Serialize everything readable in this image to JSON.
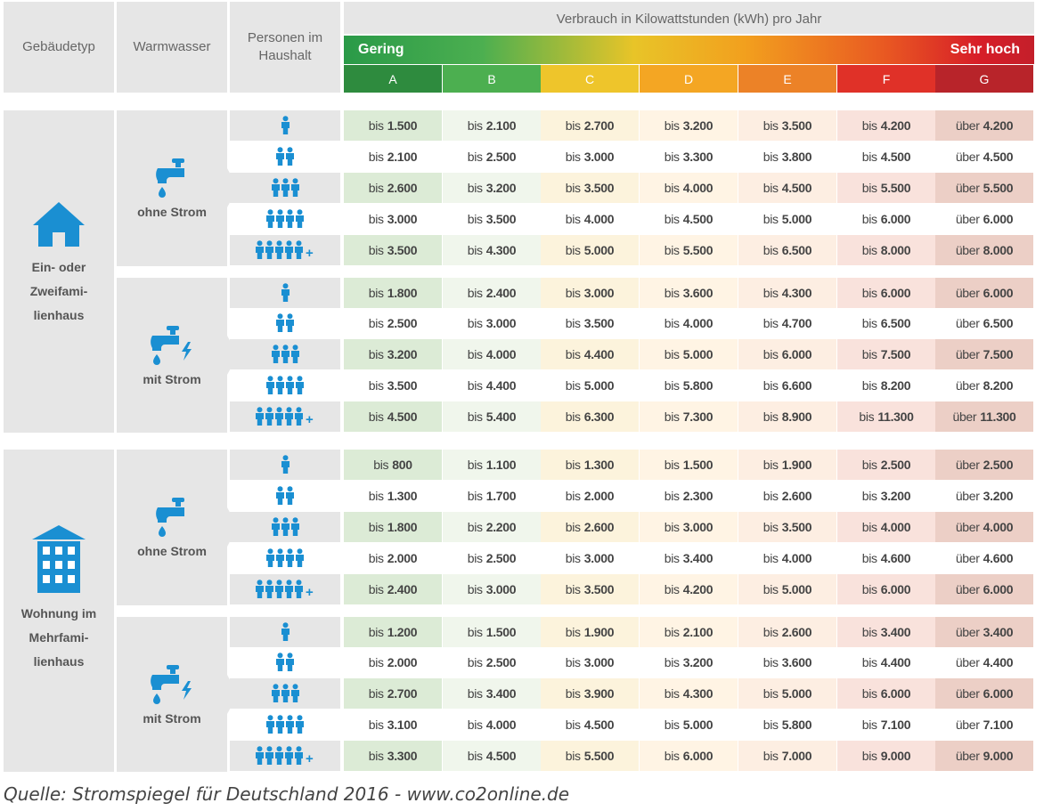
{
  "header": {
    "gebaeudetyp": "Gebäudetyp",
    "warmwasser": "Warmwasser",
    "personen_line1": "Personen im",
    "personen_line2": "Haushalt",
    "verbrauch": "Verbrauch in Kilowattstunden (kWh) pro Jahr",
    "scale_low": "Gering",
    "scale_high": "Sehr hoch"
  },
  "chart_data": {
    "type": "table",
    "title": "Verbrauch in Kilowattstunden (kWh) pro Jahr",
    "classes": [
      "A",
      "B",
      "C",
      "D",
      "E",
      "F",
      "G"
    ],
    "class_colors": [
      "#2e8b3e",
      "#4caf50",
      "#eec52b",
      "#f4a623",
      "#ec8227",
      "#e03128",
      "#b8242a"
    ],
    "class_bg": [
      "#dcebd6",
      "#f0f6ec",
      "#fcf3dc",
      "#fff4e4",
      "#fdeee2",
      "#f9e2dc",
      "#eccfc6"
    ],
    "groups": [
      {
        "building": "Ein- oder Zweifamilienhaus",
        "building_lines": [
          "Ein- oder",
          "Zweifami-",
          "lienhaus"
        ],
        "building_icon": "house-icon",
        "sections": [
          {
            "warmwasser": "ohne Strom",
            "icon": "faucet-icon",
            "rows": [
              {
                "persons": 1,
                "plus": false,
                "values": [
                  "bis 1.500",
                  "bis 2.100",
                  "bis 2.700",
                  "bis 3.200",
                  "bis 3.500",
                  "bis 4.200",
                  "über 4.200"
                ]
              },
              {
                "persons": 2,
                "plus": false,
                "values": [
                  "bis 2.100",
                  "bis 2.500",
                  "bis 3.000",
                  "bis 3.300",
                  "bis 3.800",
                  "bis 4.500",
                  "über 4.500"
                ]
              },
              {
                "persons": 3,
                "plus": false,
                "values": [
                  "bis 2.600",
                  "bis 3.200",
                  "bis 3.500",
                  "bis 4.000",
                  "bis 4.500",
                  "bis 5.500",
                  "über 5.500"
                ]
              },
              {
                "persons": 4,
                "plus": false,
                "values": [
                  "bis 3.000",
                  "bis 3.500",
                  "bis 4.000",
                  "bis 4.500",
                  "bis 5.000",
                  "bis 6.000",
                  "über 6.000"
                ]
              },
              {
                "persons": 5,
                "plus": true,
                "values": [
                  "bis 3.500",
                  "bis 4.300",
                  "bis 5.000",
                  "bis 5.500",
                  "bis 6.500",
                  "bis 8.000",
                  "über 8.000"
                ]
              }
            ]
          },
          {
            "warmwasser": "mit Strom",
            "icon": "faucet-lightning-icon",
            "rows": [
              {
                "persons": 1,
                "plus": false,
                "values": [
                  "bis 1.800",
                  "bis 2.400",
                  "bis 3.000",
                  "bis 3.600",
                  "bis 4.300",
                  "bis 6.000",
                  "über 6.000"
                ]
              },
              {
                "persons": 2,
                "plus": false,
                "values": [
                  "bis 2.500",
                  "bis 3.000",
                  "bis 3.500",
                  "bis 4.000",
                  "bis 4.700",
                  "bis 6.500",
                  "über 6.500"
                ]
              },
              {
                "persons": 3,
                "plus": false,
                "values": [
                  "bis 3.200",
                  "bis 4.000",
                  "bis 4.400",
                  "bis 5.000",
                  "bis 6.000",
                  "bis 7.500",
                  "über 7.500"
                ]
              },
              {
                "persons": 4,
                "plus": false,
                "values": [
                  "bis 3.500",
                  "bis 4.400",
                  "bis 5.000",
                  "bis 5.800",
                  "bis 6.600",
                  "bis 8.200",
                  "über 8.200"
                ]
              },
              {
                "persons": 5,
                "plus": true,
                "values": [
                  "bis 4.500",
                  "bis 5.400",
                  "bis 6.300",
                  "bis 7.300",
                  "bis 8.900",
                  "bis 11.300",
                  "über 11.300"
                ]
              }
            ]
          }
        ]
      },
      {
        "building": "Wohnung im Mehrfamilienhaus",
        "building_lines": [
          "Wohnung im",
          "Mehrfami-",
          "lienhaus"
        ],
        "building_icon": "apartment-building-icon",
        "sections": [
          {
            "warmwasser": "ohne Strom",
            "icon": "faucet-icon",
            "rows": [
              {
                "persons": 1,
                "plus": false,
                "values": [
                  "bis 800",
                  "bis 1.100",
                  "bis 1.300",
                  "bis 1.500",
                  "bis 1.900",
                  "bis 2.500",
                  "über 2.500"
                ]
              },
              {
                "persons": 2,
                "plus": false,
                "values": [
                  "bis 1.300",
                  "bis 1.700",
                  "bis 2.000",
                  "bis 2.300",
                  "bis 2.600",
                  "bis 3.200",
                  "über 3.200"
                ]
              },
              {
                "persons": 3,
                "plus": false,
                "values": [
                  "bis 1.800",
                  "bis 2.200",
                  "bis 2.600",
                  "bis 3.000",
                  "bis 3.500",
                  "bis 4.000",
                  "über 4.000"
                ]
              },
              {
                "persons": 4,
                "plus": false,
                "values": [
                  "bis 2.000",
                  "bis 2.500",
                  "bis 3.000",
                  "bis 3.400",
                  "bis 4.000",
                  "bis 4.600",
                  "über 4.600"
                ]
              },
              {
                "persons": 5,
                "plus": true,
                "values": [
                  "bis 2.400",
                  "bis 3.000",
                  "bis 3.500",
                  "bis 4.200",
                  "bis 5.000",
                  "bis 6.000",
                  "über 6.000"
                ]
              }
            ]
          },
          {
            "warmwasser": "mit Strom",
            "icon": "faucet-lightning-icon",
            "rows": [
              {
                "persons": 1,
                "plus": false,
                "values": [
                  "bis 1.200",
                  "bis 1.500",
                  "bis 1.900",
                  "bis 2.100",
                  "bis 2.600",
                  "bis 3.400",
                  "über 3.400"
                ]
              },
              {
                "persons": 2,
                "plus": false,
                "values": [
                  "bis 2.000",
                  "bis 2.500",
                  "bis 3.000",
                  "bis 3.200",
                  "bis 3.600",
                  "bis 4.400",
                  "über 4.400"
                ]
              },
              {
                "persons": 3,
                "plus": false,
                "values": [
                  "bis 2.700",
                  "bis 3.400",
                  "bis 3.900",
                  "bis 4.300",
                  "bis 5.000",
                  "bis 6.000",
                  "über 6.000"
                ]
              },
              {
                "persons": 4,
                "plus": false,
                "values": [
                  "bis 3.100",
                  "bis 4.000",
                  "bis 4.500",
                  "bis 5.000",
                  "bis 5.800",
                  "bis 7.100",
                  "über 7.100"
                ]
              },
              {
                "persons": 5,
                "plus": true,
                "values": [
                  "bis 3.300",
                  "bis 4.500",
                  "bis 5.500",
                  "bis 6.000",
                  "bis 7.000",
                  "bis 9.000",
                  "über 9.000"
                ]
              }
            ]
          }
        ]
      }
    ]
  },
  "source": "Quelle: Stromspiegel für Deutschland 2016 - www.co2online.de"
}
